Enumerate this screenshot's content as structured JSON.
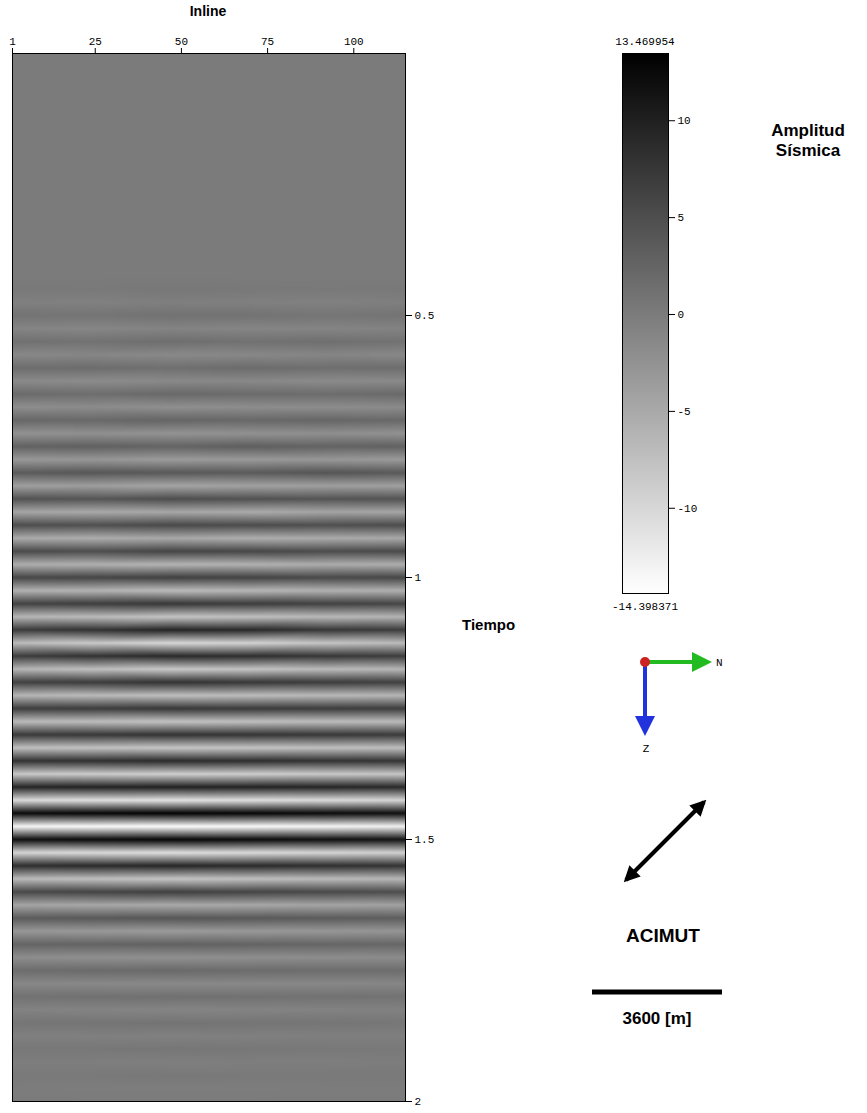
{
  "chart_data": {
    "type": "heatmap",
    "x_label": "Inline",
    "y_label": "Tiempo",
    "xlim": [
      1,
      115
    ],
    "xticks": [
      1,
      25,
      50,
      75,
      100
    ],
    "ylim": [
      0,
      2
    ],
    "yticks": [
      0.5,
      1,
      1.5,
      2
    ],
    "x": [
      1,
      23.8,
      46.6,
      69.4,
      92.2,
      115
    ],
    "y": [
      0,
      0.025,
      0.05,
      0.075,
      0.1,
      0.125,
      0.15,
      0.175,
      0.2,
      0.225,
      0.25,
      0.275,
      0.3,
      0.325,
      0.35,
      0.375,
      0.4,
      0.425,
      0.45,
      0.475,
      0.5,
      0.525,
      0.55,
      0.575,
      0.6,
      0.625,
      0.65,
      0.675,
      0.7,
      0.725,
      0.75,
      0.775,
      0.8,
      0.825,
      0.85,
      0.875,
      0.9,
      0.925,
      0.95,
      0.975,
      1,
      1.025,
      1.05,
      1.075,
      1.1,
      1.125,
      1.15,
      1.175,
      1.2,
      1.225,
      1.25,
      1.275,
      1.3,
      1.325,
      1.35,
      1.375,
      1.4,
      1.425,
      1.45,
      1.475,
      1.5,
      1.525,
      1.55,
      1.575,
      1.6,
      1.625,
      1.65,
      1.675,
      1.7,
      1.725,
      1.75,
      1.775,
      1.8,
      1.825,
      1.85,
      1.875,
      1.9,
      1.925,
      1.95,
      1.975,
      2
    ],
    "cells": [
      [
        0,
        0,
        0,
        0,
        0,
        0
      ],
      [
        0,
        0,
        0,
        0,
        0,
        0
      ],
      [
        0,
        0,
        0,
        0,
        0,
        0
      ],
      [
        0,
        0,
        0,
        0,
        0,
        0
      ],
      [
        0,
        0,
        0,
        0,
        0,
        0
      ],
      [
        0,
        0,
        0,
        0,
        0,
        0
      ],
      [
        0,
        0,
        0,
        0,
        0,
        0
      ],
      [
        0,
        0,
        0,
        0,
        0,
        0
      ],
      [
        0,
        0,
        0,
        0,
        0,
        0
      ],
      [
        0,
        0,
        0,
        0,
        0,
        0
      ],
      [
        0,
        0,
        0,
        0,
        0,
        0
      ],
      [
        0,
        0,
        0,
        0,
        0,
        0
      ],
      [
        0,
        0,
        0,
        0,
        0,
        0
      ],
      [
        0,
        0,
        0,
        0,
        0,
        0
      ],
      [
        0,
        0,
        0,
        0,
        0,
        0
      ],
      [
        0,
        0,
        0,
        0,
        0,
        0
      ],
      [
        0,
        0,
        0,
        0,
        0,
        0
      ],
      [
        0,
        0,
        0,
        0,
        0,
        0
      ],
      [
        0.3,
        0.2,
        0.4,
        0.3,
        0.2,
        0.3
      ],
      [
        -0.5,
        -0.6,
        -0.4,
        -0.5,
        -0.6,
        -0.4
      ],
      [
        0.8,
        0.7,
        1,
        0.9,
        0.6,
        0.8
      ],
      [
        -1,
        -1.2,
        -0.9,
        -1.1,
        -1,
        -0.8
      ],
      [
        1.2,
        1,
        1.4,
        1.1,
        1.3,
        1
      ],
      [
        -1.4,
        -1.2,
        -1.5,
        -1.3,
        -1.1,
        -1.4
      ],
      [
        1.5,
        1.6,
        1.3,
        1.7,
        1.4,
        1.5
      ],
      [
        -1.6,
        -1.8,
        -1.5,
        -1.4,
        -1.7,
        -1.6
      ],
      [
        1.8,
        1.5,
        2,
        1.7,
        1.6,
        1.9
      ],
      [
        -2,
        -1.8,
        -2.2,
        -2,
        -1.9,
        -1.7
      ],
      [
        2.2,
        2,
        2.4,
        2.1,
        2.3,
        2
      ],
      [
        -2.5,
        -2.3,
        -2.6,
        -2.4,
        -2.2,
        -2.5
      ],
      [
        2.8,
        3,
        2.6,
        3.2,
        2.7,
        2.9
      ],
      [
        -3.2,
        -3,
        -3.5,
        -3.3,
        -3.1,
        -3.4
      ],
      [
        3.5,
        4,
        3.8,
        3.6,
        4.2,
        3.7
      ],
      [
        -4,
        -3.8,
        -4.5,
        -4.2,
        -3.9,
        -4.1
      ],
      [
        4.5,
        4.2,
        5,
        4.6,
        4.3,
        4.4
      ],
      [
        -4.6,
        -5,
        -4.8,
        -5.2,
        -4.5,
        -4.7
      ],
      [
        5,
        4.8,
        5.5,
        5.2,
        4.9,
        5.1
      ],
      [
        -5.2,
        -5.5,
        -5,
        -5.6,
        -5.3,
        -5
      ],
      [
        5.4,
        5,
        6,
        5.8,
        5.2,
        5.5
      ],
      [
        -5.5,
        -5.8,
        -6.2,
        -6,
        -5.4,
        -5.6
      ],
      [
        5.8,
        6,
        6.5,
        6.2,
        5.6,
        5.8
      ],
      [
        -6,
        -6.2,
        -7,
        -6.5,
        -6,
        -5.8
      ],
      [
        6.2,
        6.8,
        7.5,
        7,
        6.4,
        6
      ],
      [
        -6.5,
        -7,
        -8,
        -7.5,
        -6.8,
        -6.2
      ],
      [
        7,
        8,
        9.5,
        9,
        7.5,
        6.8
      ],
      [
        -7,
        -8.5,
        -10,
        -9.5,
        -8,
        -7
      ],
      [
        6.8,
        8,
        9,
        8.5,
        7.5,
        6.8
      ],
      [
        -6.5,
        -7.5,
        -8.5,
        -8,
        -7,
        -6.5
      ],
      [
        6.5,
        7,
        8,
        7.5,
        7,
        6.5
      ],
      [
        -6.5,
        -7,
        -7.5,
        -7.2,
        -6.8,
        -6.5
      ],
      [
        6.8,
        7,
        7.5,
        7.2,
        7,
        6.8
      ],
      [
        -7,
        -7.2,
        -7.8,
        -7.5,
        -7.2,
        -7
      ],
      [
        7.2,
        7.5,
        8,
        7.8,
        7.5,
        7.2
      ],
      [
        -7.5,
        -7.8,
        -8.2,
        -8,
        -7.6,
        -7.4
      ],
      [
        8,
        8.2,
        8.8,
        8.5,
        8,
        7.8
      ],
      [
        -8.5,
        -8.8,
        -9.2,
        -9,
        -8.5,
        -8.2
      ],
      [
        9.5,
        9.8,
        10,
        9.8,
        9.5,
        9
      ],
      [
        -10.5,
        -11,
        -11.5,
        -11,
        -10.5,
        -10
      ],
      [
        12.5,
        13,
        13.4,
        13,
        12.5,
        12
      ],
      [
        -13.5,
        -14,
        -14.3,
        -14,
        -13.5,
        -13
      ],
      [
        12,
        12.5,
        13,
        12.5,
        12,
        11.5
      ],
      [
        -10,
        -10.5,
        -11,
        -10.5,
        -10,
        -9.5
      ],
      [
        8.5,
        9,
        9.5,
        9,
        8.5,
        8
      ],
      [
        -7,
        -7.5,
        -8,
        -7.5,
        -7,
        -6.5
      ],
      [
        5.5,
        6,
        6.5,
        6,
        5.5,
        5
      ],
      [
        -4.5,
        -4.8,
        -5,
        -4.8,
        -4.5,
        -4.2
      ],
      [
        3.5,
        3.8,
        4,
        3.8,
        3.5,
        3.2
      ],
      [
        -3,
        -3.2,
        -3.5,
        -3.2,
        -3,
        -2.8
      ],
      [
        2.5,
        2.6,
        2.8,
        2.6,
        2.4,
        2.2
      ],
      [
        -2,
        -2.2,
        -2.3,
        -2.1,
        -2,
        -1.8
      ],
      [
        1.6,
        1.8,
        1.9,
        1.7,
        1.6,
        1.5
      ],
      [
        -1.3,
        -1.4,
        -1.5,
        -1.4,
        -1.3,
        -1.2
      ],
      [
        1,
        1.1,
        1.2,
        1.1,
        1,
        0.9
      ],
      [
        -0.8,
        -0.9,
        -1,
        -0.9,
        -0.8,
        -0.7
      ],
      [
        0.6,
        0.7,
        0.8,
        0.7,
        0.6,
        0.5
      ],
      [
        -0.5,
        -0.5,
        -0.6,
        -0.5,
        -0.4,
        -0.4
      ],
      [
        0.4,
        0.4,
        0.5,
        0.4,
        0.3,
        0.3
      ],
      [
        -0.3,
        -0.3,
        -0.4,
        -0.3,
        -0.3,
        -0.2
      ],
      [
        0.2,
        0.2,
        0.3,
        0.2,
        0.2,
        0.2
      ],
      [
        -0.1,
        -0.2,
        -0.2,
        -0.2,
        -0.1,
        -0.1
      ],
      [
        0,
        0,
        0,
        0,
        0,
        0
      ]
    ],
    "colorbar": {
      "label": "Amplitud Sísmica",
      "range": [
        -14.398371,
        13.469954
      ],
      "ticks": [
        -10,
        -5,
        0,
        5,
        10
      ],
      "colors": [
        "#ffffff",
        "#000000"
      ]
    },
    "annotations": {
      "compass": [
        "N",
        "Z"
      ],
      "azimuth": "ACIMUT",
      "scale_bar": "3600 [m]"
    }
  }
}
